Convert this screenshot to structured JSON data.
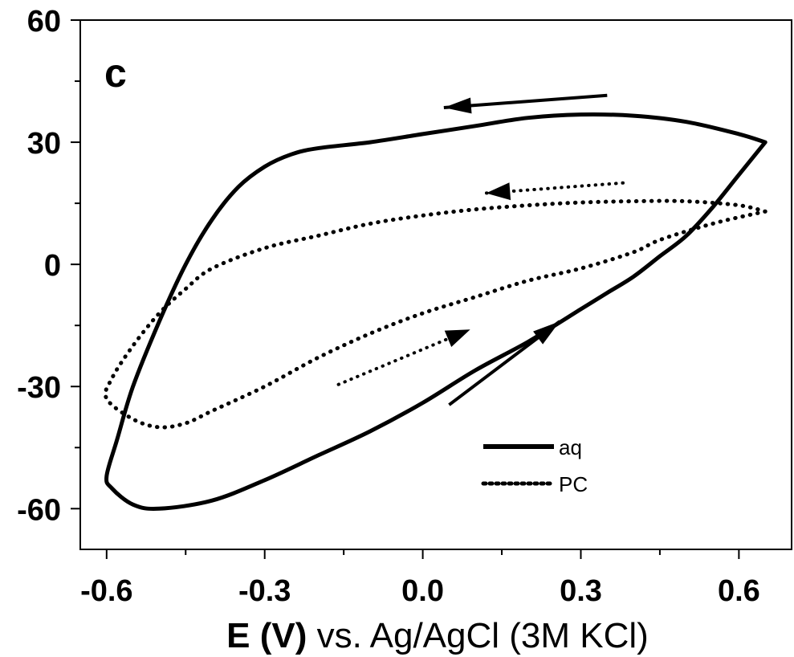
{
  "chart_data": {
    "type": "line",
    "panel_label": "c",
    "xlabel_bold": "E (V)",
    "xlabel_rest": " vs. Ag/AgCl (3M KCl)",
    "ylabel": "",
    "xlim": [
      -0.65,
      0.7
    ],
    "ylim": [
      -70,
      60
    ],
    "x_ticks": [
      -0.6,
      -0.3,
      0.0,
      0.3,
      0.6
    ],
    "x_tick_labels": [
      "-0.6",
      "-0.3",
      "0.0",
      "0.3",
      "0.6"
    ],
    "y_ticks": [
      -60,
      -30,
      0,
      30,
      60
    ],
    "y_tick_labels": [
      "-60",
      "-30",
      "0",
      "30",
      "60"
    ],
    "grid": false,
    "legend_position": "bottom-right",
    "series": [
      {
        "name": "aq",
        "style": "solid",
        "color": "#000000",
        "points": [
          [
            0.65,
            30
          ],
          [
            0.6,
            22
          ],
          [
            0.55,
            14
          ],
          [
            0.5,
            7
          ],
          [
            0.45,
            2
          ],
          [
            0.4,
            -3
          ],
          [
            0.35,
            -7
          ],
          [
            0.3,
            -11
          ],
          [
            0.2,
            -19
          ],
          [
            0.1,
            -26
          ],
          [
            0.0,
            -34
          ],
          [
            -0.1,
            -41
          ],
          [
            -0.2,
            -47
          ],
          [
            -0.3,
            -53
          ],
          [
            -0.4,
            -58
          ],
          [
            -0.5,
            -60
          ],
          [
            -0.55,
            -59
          ],
          [
            -0.59,
            -55
          ],
          [
            -0.6,
            -52
          ],
          [
            -0.58,
            -43
          ],
          [
            -0.55,
            -30
          ],
          [
            -0.5,
            -14
          ],
          [
            -0.45,
            0
          ],
          [
            -0.4,
            11
          ],
          [
            -0.35,
            19
          ],
          [
            -0.3,
            24
          ],
          [
            -0.25,
            27
          ],
          [
            -0.2,
            28.5
          ],
          [
            -0.1,
            30
          ],
          [
            0.0,
            32
          ],
          [
            0.1,
            34
          ],
          [
            0.2,
            36
          ],
          [
            0.3,
            36.8
          ],
          [
            0.4,
            36.5
          ],
          [
            0.5,
            35
          ],
          [
            0.6,
            32
          ],
          [
            0.65,
            30
          ]
        ]
      },
      {
        "name": "PC",
        "style": "dotted",
        "color": "#000000",
        "points": [
          [
            0.65,
            13
          ],
          [
            0.55,
            10
          ],
          [
            0.45,
            6
          ],
          [
            0.4,
            3
          ],
          [
            0.3,
            -1
          ],
          [
            0.2,
            -4
          ],
          [
            0.1,
            -8
          ],
          [
            0.0,
            -12
          ],
          [
            -0.1,
            -17
          ],
          [
            -0.2,
            -23
          ],
          [
            -0.3,
            -30
          ],
          [
            -0.4,
            -36
          ],
          [
            -0.45,
            -39
          ],
          [
            -0.5,
            -40
          ],
          [
            -0.55,
            -38
          ],
          [
            -0.6,
            -33
          ],
          [
            -0.59,
            -28
          ],
          [
            -0.55,
            -20
          ],
          [
            -0.5,
            -12
          ],
          [
            -0.45,
            -6
          ],
          [
            -0.4,
            -1
          ],
          [
            -0.3,
            4
          ],
          [
            -0.2,
            7
          ],
          [
            -0.1,
            10
          ],
          [
            0.0,
            12
          ],
          [
            0.1,
            13.5
          ],
          [
            0.2,
            14.5
          ],
          [
            0.3,
            15.2
          ],
          [
            0.4,
            15.5
          ],
          [
            0.5,
            15.5
          ],
          [
            0.6,
            14.5
          ],
          [
            0.65,
            13
          ]
        ]
      }
    ],
    "arrows": [
      {
        "series": "aq",
        "from": [
          0.35,
          41.5
        ],
        "to": [
          0.04,
          38.5
        ]
      },
      {
        "series": "aq",
        "from": [
          0.05,
          -34.5
        ],
        "to": [
          0.26,
          -14
        ]
      },
      {
        "series": "PC",
        "from": [
          0.38,
          20
        ],
        "to": [
          0.12,
          17.5
        ]
      },
      {
        "series": "PC",
        "from": [
          -0.16,
          -29.5
        ],
        "to": [
          0.09,
          -16
        ]
      }
    ]
  }
}
